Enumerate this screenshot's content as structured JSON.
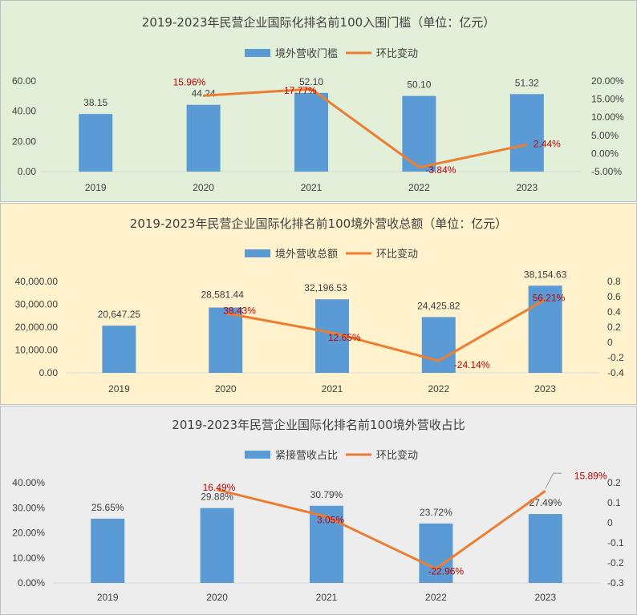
{
  "colors": {
    "bar": "#5b9bd5",
    "line": "#ed7d31",
    "pct_label": "#c00000",
    "panel1_bg": "#e2efd9",
    "panel2_bg": "#fff2cc",
    "panel3_bg": "#ededed",
    "border": "#bfbfbf"
  },
  "chart_data": [
    {
      "type": "bar+line",
      "title": "2019-2023年民营企业国际化排名前100入围门槛（单位：亿元）",
      "categories": [
        "2019",
        "2020",
        "2021",
        "2022",
        "2023"
      ],
      "series": [
        {
          "name": "境外营收门槛",
          "kind": "bar",
          "values": [
            38.15,
            44.24,
            52.1,
            50.1,
            51.32
          ],
          "labels": [
            "38.15",
            "44.24",
            "52.10",
            "50.10",
            "51.32"
          ]
        },
        {
          "name": "环比变动",
          "kind": "line",
          "values": [
            null,
            15.96,
            17.77,
            -3.84,
            2.44
          ],
          "labels": [
            "",
            "15.96%",
            "17.77%",
            "-3.84%",
            "2.44%"
          ]
        }
      ],
      "ylim": [
        0,
        60
      ],
      "y_ticks": [
        "0.00",
        "20.00",
        "40.00",
        "60.00"
      ],
      "y2lim": [
        -5,
        20
      ],
      "y2_ticks": [
        "-5.00%",
        "0.00%",
        "5.00%",
        "10.00%",
        "15.00%",
        "20.00%"
      ],
      "legend": "top-center"
    },
    {
      "type": "bar+line",
      "title": "2019-2023年民营企业国际化排名前100境外营收总额（单位：亿元）",
      "categories": [
        "2019",
        "2020",
        "2021",
        "2022",
        "2023"
      ],
      "series": [
        {
          "name": "境外营收总额",
          "kind": "bar",
          "values": [
            20647.25,
            28581.44,
            32196.53,
            24425.82,
            38154.63
          ],
          "labels": [
            "20,647.25",
            "28,581.44",
            "32,196.53",
            "24,425.82",
            "38,154.63"
          ]
        },
        {
          "name": "环比变动",
          "kind": "line",
          "values": [
            null,
            0.3843,
            0.1265,
            -0.2414,
            0.5621
          ],
          "labels": [
            "",
            "38.43%",
            "12.65%",
            "-24.14%",
            "56.21%"
          ]
        }
      ],
      "ylim": [
        0,
        40000
      ],
      "y_ticks": [
        "0.00",
        "10,000.00",
        "20,000.00",
        "30,000.00",
        "40,000.00"
      ],
      "y2lim": [
        -0.4,
        0.8
      ],
      "y2_ticks": [
        "-0.4",
        "-0.2",
        "0",
        "0.2",
        "0.4",
        "0.6",
        "0.8"
      ],
      "legend": "top-center"
    },
    {
      "type": "bar+line",
      "title": "2019-2023年民营企业国际化排名前100境外营收占比",
      "categories": [
        "2019",
        "2020",
        "2021",
        "2022",
        "2023"
      ],
      "series": [
        {
          "name": "紧接营收占比",
          "kind": "bar",
          "values": [
            25.65,
            29.88,
            30.79,
            23.72,
            27.49
          ],
          "labels": [
            "25.65%",
            "29.88%",
            "30.79%",
            "23.72%",
            "27.49%"
          ]
        },
        {
          "name": "环比变动",
          "kind": "line",
          "values": [
            null,
            0.1649,
            0.0305,
            -0.2296,
            0.1589
          ],
          "labels": [
            "",
            "16.49%",
            "3.05%",
            "-22.96%",
            "15.89%"
          ]
        }
      ],
      "ylim": [
        0,
        40
      ],
      "y_ticks": [
        "0.00%",
        "10.00%",
        "20.00%",
        "30.00%",
        "40.00%"
      ],
      "y2lim": [
        -0.3,
        0.2
      ],
      "y2_ticks": [
        "-0.3",
        "-0.2",
        "-0.1",
        "0",
        "0.1",
        "0.2"
      ],
      "legend": "top-center"
    }
  ]
}
